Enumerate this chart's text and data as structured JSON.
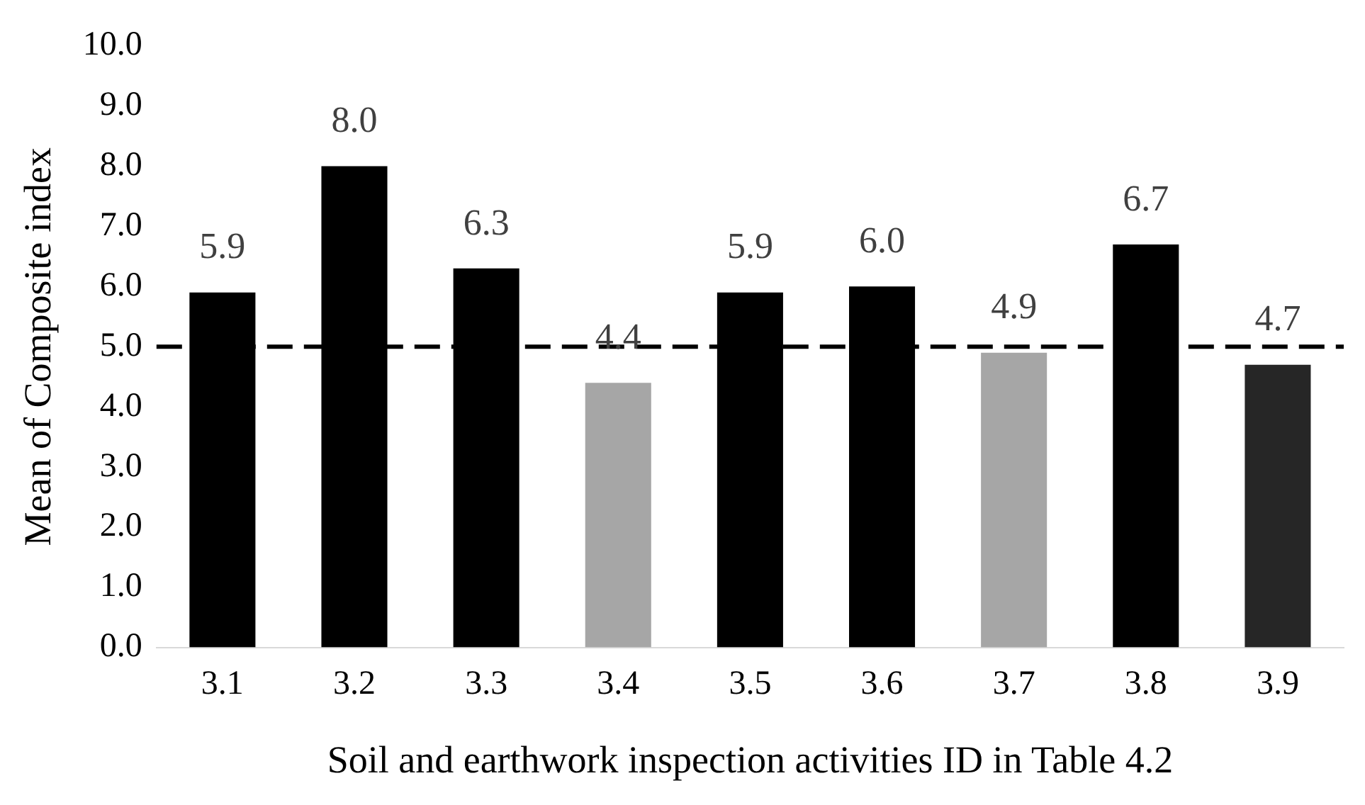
{
  "chart_data": {
    "type": "bar",
    "xlabel": "Soil and earthwork inspection activities ID in Table 4.2",
    "ylabel": "Mean of Composite index",
    "categories": [
      "3.1",
      "3.2",
      "3.3",
      "3.4",
      "3.5",
      "3.6",
      "3.7",
      "3.8",
      "3.9"
    ],
    "values": [
      5.9,
      8.0,
      6.3,
      4.4,
      5.9,
      6.0,
      4.9,
      6.7,
      4.7
    ],
    "value_labels": [
      "5.9",
      "8.0",
      "6.3",
      "4.4",
      "5.9",
      "6.0",
      "4.9",
      "6.7",
      "4.7"
    ],
    "colors": [
      "#000000",
      "#000000",
      "#000000",
      "#a6a6a6",
      "#000000",
      "#000000",
      "#a6a6a6",
      "#000000",
      "#262626"
    ],
    "ylim": [
      0,
      10
    ],
    "yticks": [
      {
        "value": 0,
        "label": "0.0"
      },
      {
        "value": 1,
        "label": "1.0"
      },
      {
        "value": 2,
        "label": "2.0"
      },
      {
        "value": 3,
        "label": "3.0"
      },
      {
        "value": 4,
        "label": "4.0"
      },
      {
        "value": 5,
        "label": "5.0"
      },
      {
        "value": 6,
        "label": "6.0"
      },
      {
        "value": 7,
        "label": "7.0"
      },
      {
        "value": 8,
        "label": "8.0"
      },
      {
        "value": 9,
        "label": "9.0"
      },
      {
        "value": 10,
        "label": "10.0"
      }
    ],
    "ref_lines": [
      {
        "axis": "y",
        "value": 5,
        "color": "#000000",
        "line_style": "dashed"
      }
    ],
    "grid": false,
    "legend": false
  }
}
